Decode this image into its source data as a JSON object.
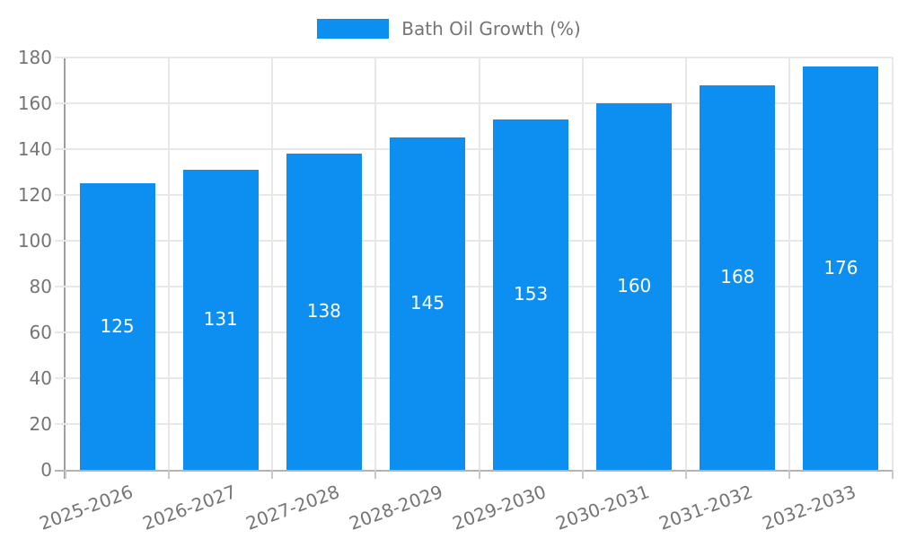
{
  "chart_data": {
    "type": "bar",
    "title": "Bath Oil Growth (%)",
    "legend": {
      "label": "Bath Oil Growth (%)",
      "position": "top"
    },
    "categories": [
      "2025-2026",
      "2026-2027",
      "2027-2028",
      "2028-2029",
      "2029-2030",
      "2030-2031",
      "2031-2032",
      "2032-2033"
    ],
    "values": [
      125,
      131,
      138,
      145,
      153,
      160,
      168,
      176
    ],
    "xlabel": "",
    "ylabel": "",
    "ylim": [
      0,
      180
    ],
    "yticks": [
      0,
      20,
      40,
      60,
      80,
      100,
      120,
      140,
      160,
      180
    ],
    "grid": true,
    "bar_labels_inside": true,
    "x_label_rotation_deg": -20
  },
  "colors": {
    "bar": "#0d8ff2",
    "grid": "#e8e8e8",
    "axis_y": "#9e9e9e",
    "axis_x": "#b3b3b3",
    "tick": "#c9c9c9",
    "tick_text": "#757575",
    "value_label": "#ffffff",
    "legend_text": "#757575"
  }
}
